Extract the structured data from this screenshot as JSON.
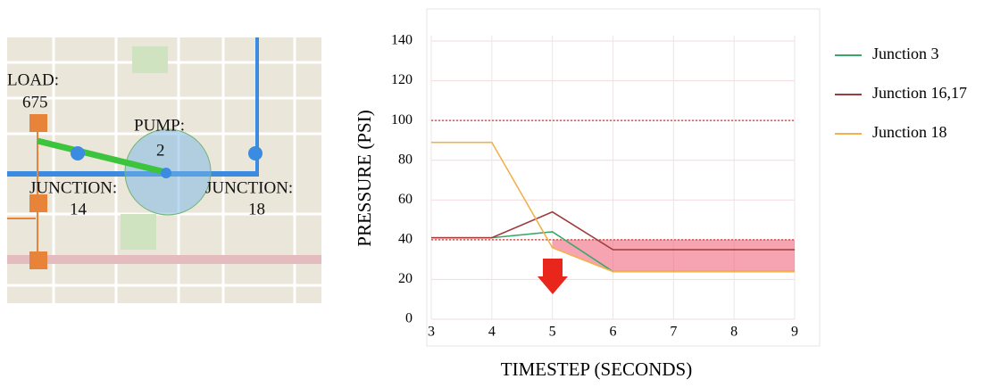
{
  "map": {
    "load_label": "LOAD:",
    "load_value": "675",
    "pump_label": "PUMP:",
    "pump_value": "2",
    "junction_a_label": "JUNCTION:",
    "junction_a_value": "14",
    "junction_b_label": "JUNCTION:",
    "junction_b_value": "18"
  },
  "chart_data": {
    "type": "line",
    "x_label": "TIMESTEP (SECONDS)",
    "y_label": "PRESSURE (PSI)",
    "x": [
      3,
      4,
      5,
      6,
      7,
      8,
      9
    ],
    "series": [
      {
        "name": "Junction 3",
        "color": "#3aa66a",
        "values": [
          41,
          41,
          44,
          24,
          24,
          24,
          24
        ]
      },
      {
        "name": "Junction 16,17",
        "color": "#9e3b3b",
        "values": [
          41,
          41,
          54,
          35,
          35,
          35,
          35
        ]
      },
      {
        "name": "Junction 18",
        "color": "#f2b14c",
        "values": [
          89,
          89,
          36,
          24,
          24,
          24,
          24
        ]
      }
    ],
    "reference_lines": [
      {
        "value": 100,
        "color": "#d9534f"
      },
      {
        "value": 40,
        "color": "#d9534f",
        "shade_below": true
      }
    ],
    "xlim": [
      3,
      9
    ],
    "ylim": [
      0,
      140
    ],
    "xticks": [
      3,
      4,
      5,
      6,
      7,
      8,
      9
    ],
    "yticks": [
      0,
      20,
      40,
      60,
      80,
      100,
      120,
      140
    ],
    "grid": true,
    "legend": "right"
  }
}
